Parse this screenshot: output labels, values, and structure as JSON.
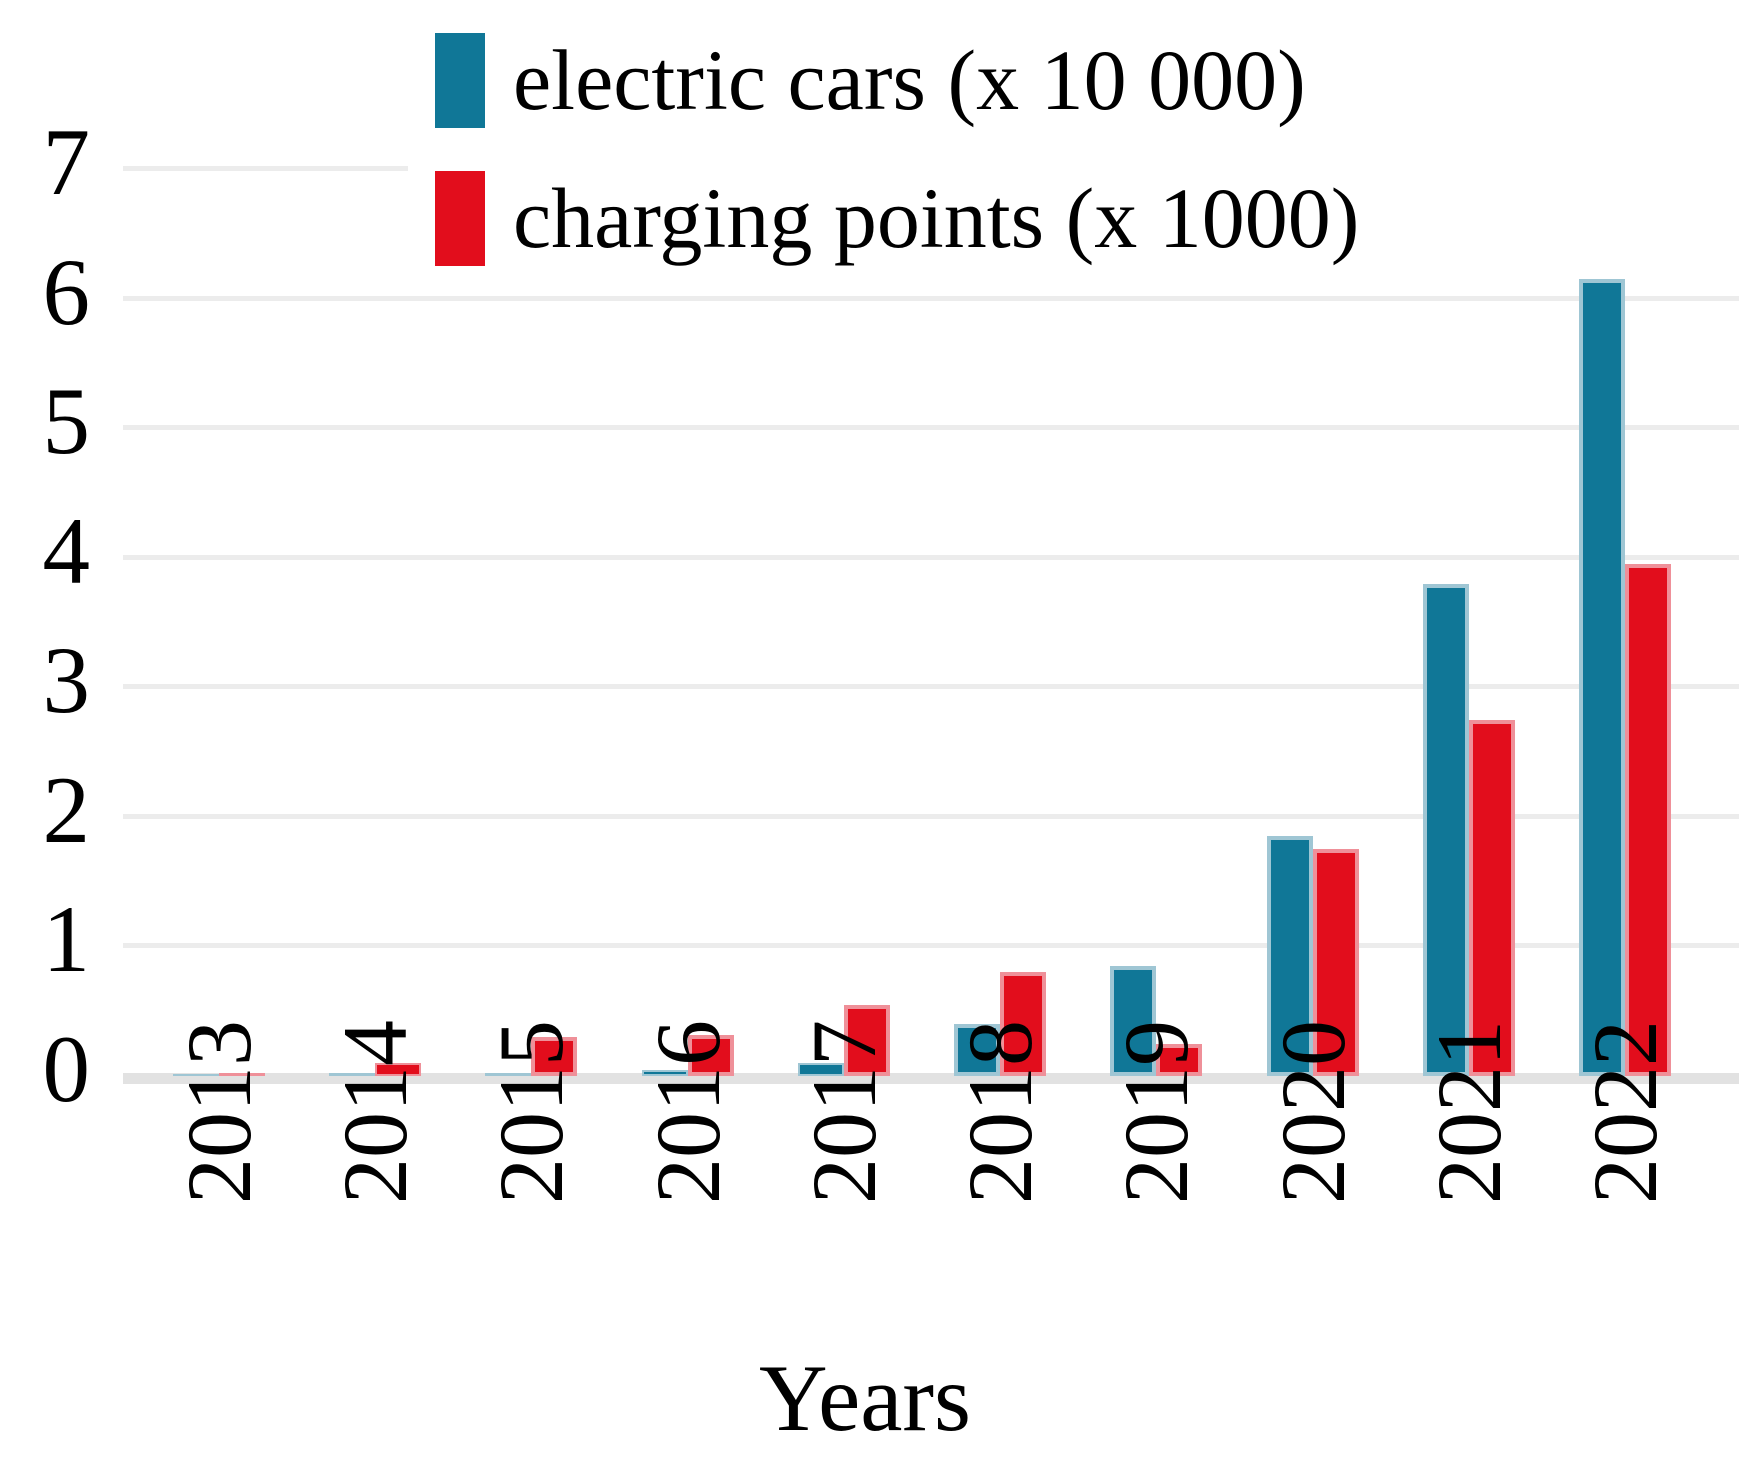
{
  "chart_data": {
    "type": "bar",
    "title": "",
    "xlabel": "Years",
    "ylabel": "",
    "ylim": [
      0,
      7
    ],
    "y_ticks": [
      0,
      1,
      2,
      3,
      4,
      5,
      6,
      7
    ],
    "grid": true,
    "legend_position": "top-inside",
    "categories": [
      "2013",
      "2014",
      "2015",
      "2016",
      "2017",
      "2018",
      "2019",
      "2020",
      "2021",
      "2022"
    ],
    "series": [
      {
        "name": "electric cars (x 10 000)",
        "color": "#107797",
        "edge_color": "#9fc6d4",
        "values": [
          0.01,
          0.02,
          0.02,
          0.05,
          0.1,
          0.4,
          0.85,
          1.85,
          3.8,
          6.15
        ]
      },
      {
        "name": "charging points (x 1000)",
        "color": "#e20d1c",
        "edge_color": "#ef9099",
        "values": [
          0.02,
          0.1,
          0.3,
          0.32,
          0.55,
          0.8,
          0.25,
          1.75,
          2.75,
          3.95
        ]
      }
    ]
  }
}
